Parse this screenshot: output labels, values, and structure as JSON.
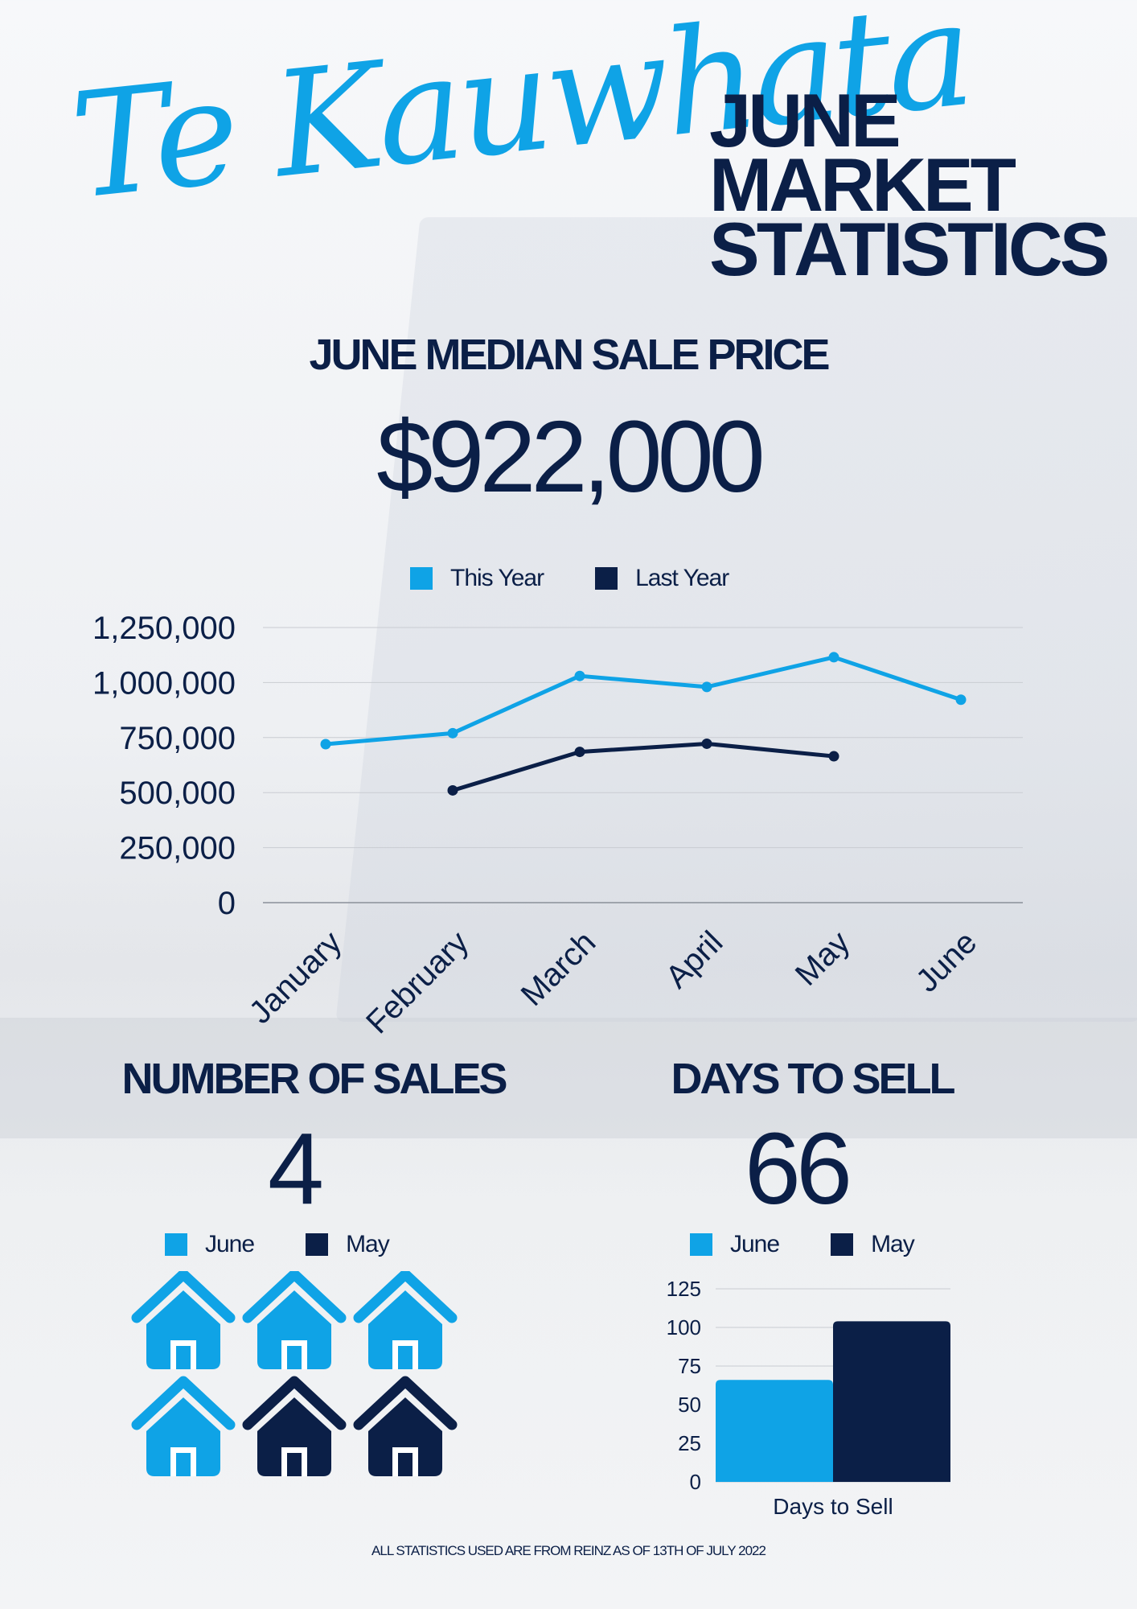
{
  "brand": "Te Kauwhata",
  "headline": [
    "JUNE",
    "MARKET",
    "STATISTICS"
  ],
  "colors": {
    "primary": "#0fa3e6",
    "dark": "#0b1f47"
  },
  "median": {
    "title": "JUNE MEDIAN SALE PRICE",
    "value": "$922,000"
  },
  "sales": {
    "title": "NUMBER OF SALES",
    "value": "4",
    "legend": [
      "June",
      "May"
    ],
    "june_count": 4,
    "may_count": 2,
    "house_icon": "house-icon"
  },
  "days": {
    "title": "DAYS TO SELL",
    "value": "66",
    "legend": [
      "June",
      "May"
    ]
  },
  "footnote": "ALL STATISTICS USED ARE FROM REINZ AS OF 13TH OF JULY 2022",
  "chart_data": [
    {
      "type": "line",
      "categories": [
        "January",
        "February",
        "March",
        "April",
        "May",
        "June"
      ],
      "series": [
        {
          "name": "This Year",
          "color": "#0fa3e6",
          "values": [
            720000,
            770000,
            1030000,
            980000,
            1115000,
            922000
          ]
        },
        {
          "name": "Last Year",
          "color": "#0b1f47",
          "values": [
            null,
            510000,
            685000,
            722000,
            665000,
            null
          ]
        }
      ],
      "yticks": [
        "0",
        "250,000",
        "500,000",
        "750,000",
        "1,000,000",
        "1,250,000"
      ],
      "ylim": [
        0,
        1250000
      ],
      "grid": true,
      "legend": "top"
    },
    {
      "type": "bar",
      "categories": [
        "Days to Sell"
      ],
      "series": [
        {
          "name": "June",
          "color": "#0fa3e6",
          "values": [
            66
          ]
        },
        {
          "name": "May",
          "color": "#0b1f47",
          "values": [
            104
          ]
        }
      ],
      "yticks": [
        "0",
        "25",
        "50",
        "75",
        "100",
        "125"
      ],
      "ylim": [
        0,
        125
      ],
      "grid": true,
      "legend": "top"
    }
  ]
}
